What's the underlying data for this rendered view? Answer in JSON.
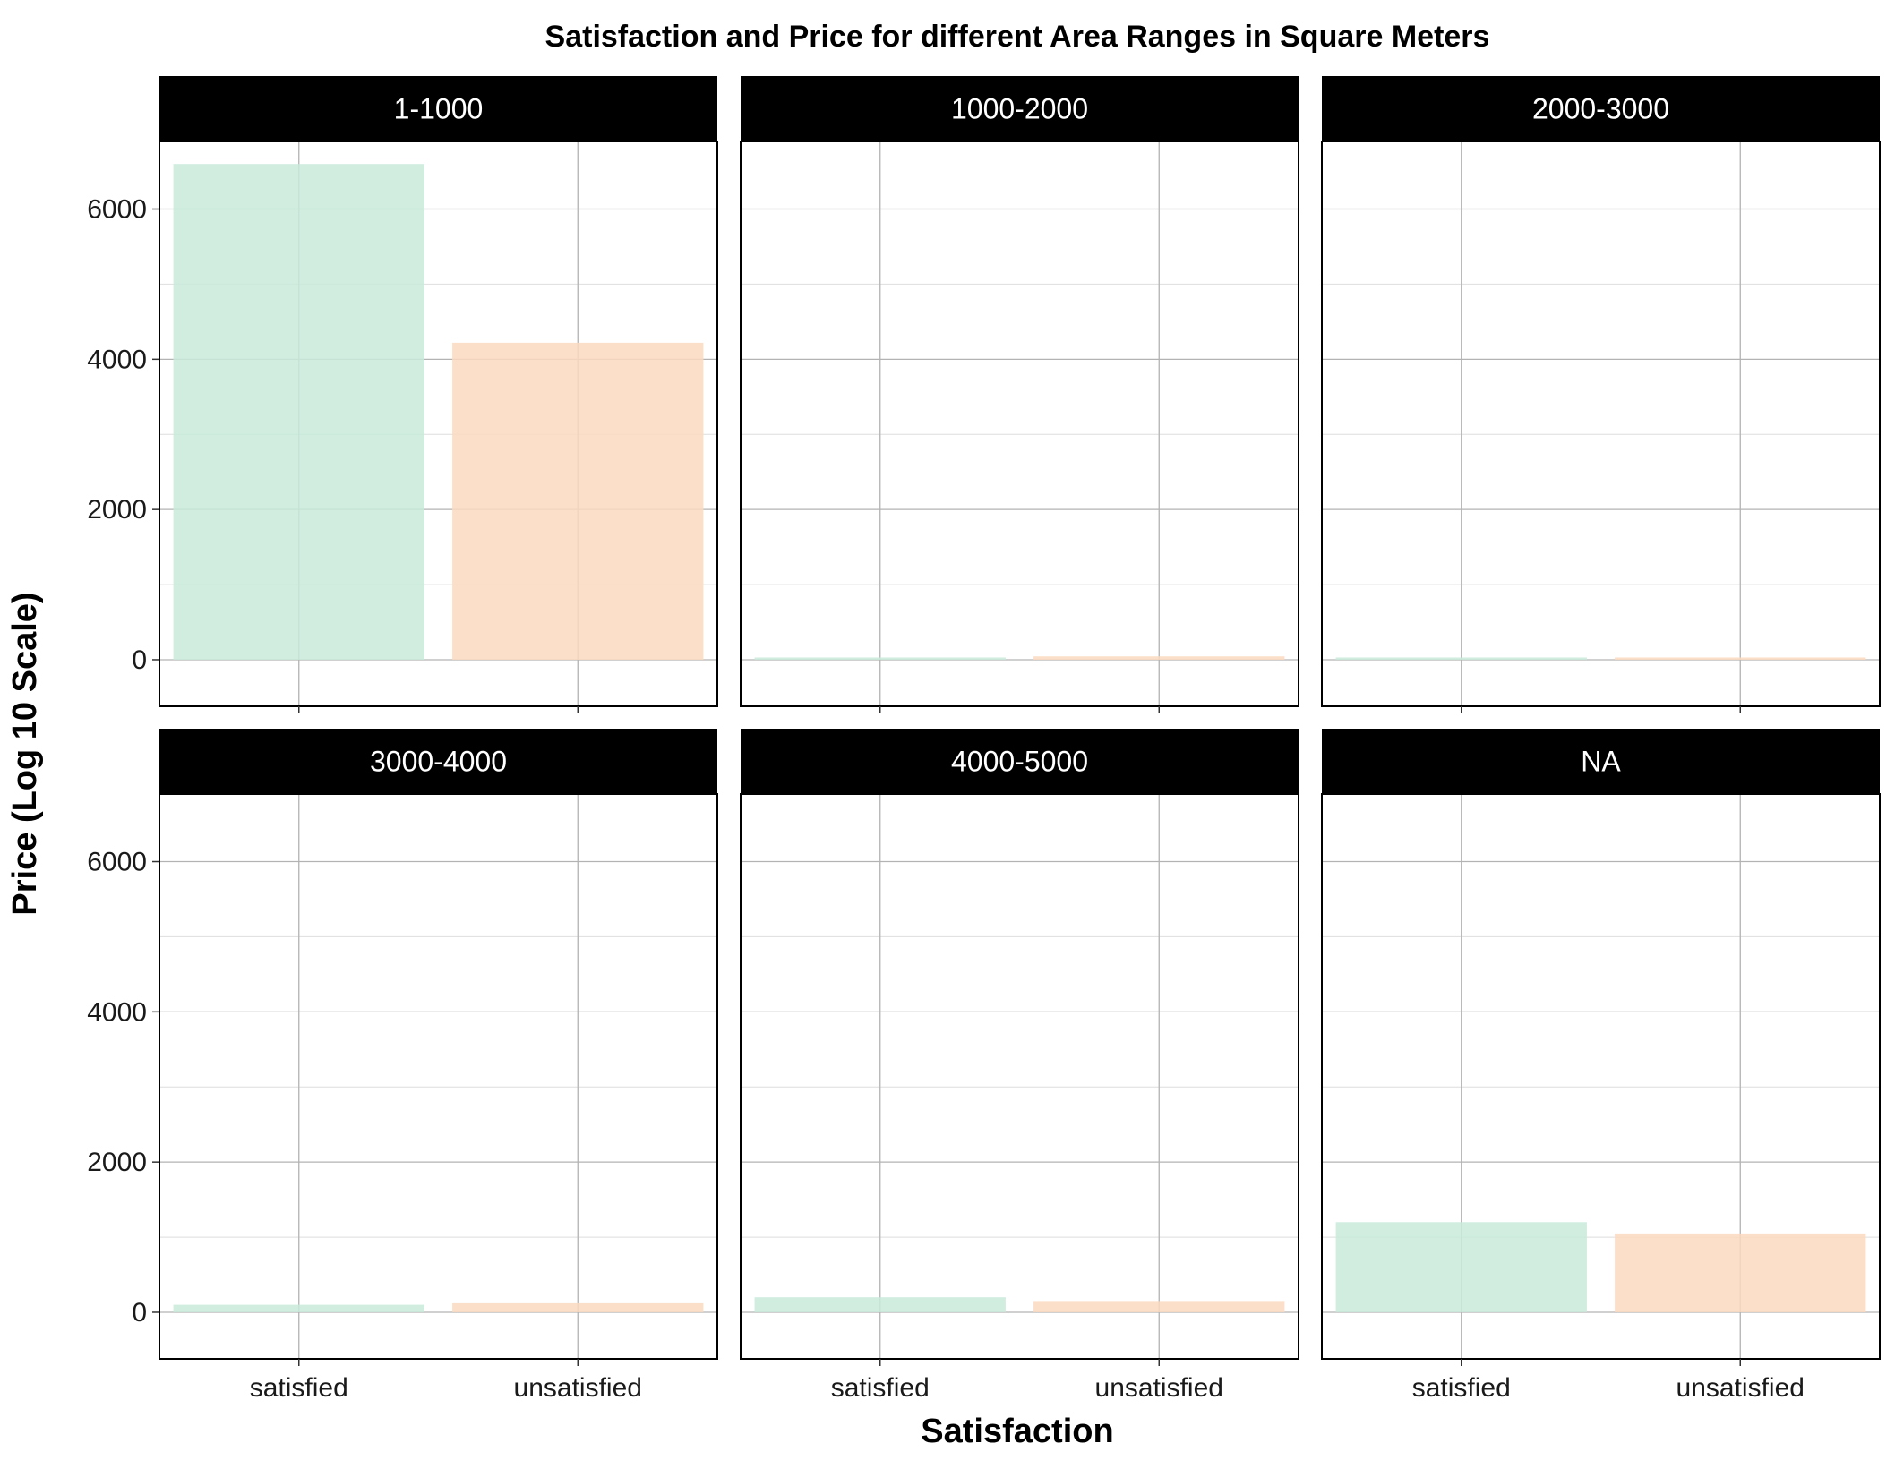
{
  "chart_data": {
    "type": "bar",
    "title": "Satisfaction and Price for different Area Ranges in Square Meters",
    "xlabel": "Satisfaction",
    "ylabel": "Price (Log 10 Scale)",
    "categories": [
      "satisfied",
      "unsatisfied"
    ],
    "ylim": [
      -620,
      6900
    ],
    "yticks": [
      0,
      2000,
      4000,
      6000
    ],
    "ytick_labels": [
      "0",
      "2000",
      "4000",
      "6000"
    ],
    "grid": true,
    "facet_layout": "2 rows x 3 columns",
    "colors": {
      "satisfied": "#c8eadb",
      "unsatisfied": "#fcd9bf",
      "strip": "#000000",
      "grid": "#b3b3b3"
    },
    "facets": [
      {
        "label": "1-1000",
        "values": [
          6600,
          4220
        ]
      },
      {
        "label": "1000-2000",
        "values": [
          30,
          45
        ]
      },
      {
        "label": "2000-3000",
        "values": [
          30,
          30
        ]
      },
      {
        "label": "3000-4000",
        "values": [
          100,
          120
        ]
      },
      {
        "label": "4000-5000",
        "values": [
          200,
          150
        ]
      },
      {
        "label": "NA",
        "values": [
          1200,
          1050
        ]
      }
    ]
  }
}
